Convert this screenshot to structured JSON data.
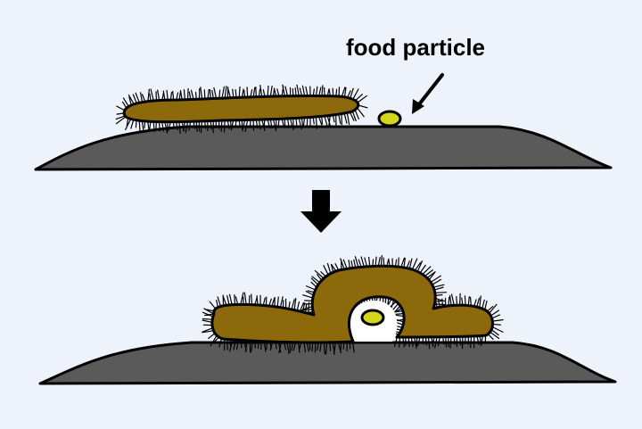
{
  "labels": {
    "food_particle": "food particle"
  },
  "colors": {
    "background": "#eef3fb",
    "substrate": "#5a5a5a",
    "organism_body": "#8c6a0c",
    "food": "#d4d61a",
    "cilia": "#000000"
  },
  "icons": {
    "pointer": "arrow-pointer-icon",
    "transition": "down-arrow-icon"
  }
}
